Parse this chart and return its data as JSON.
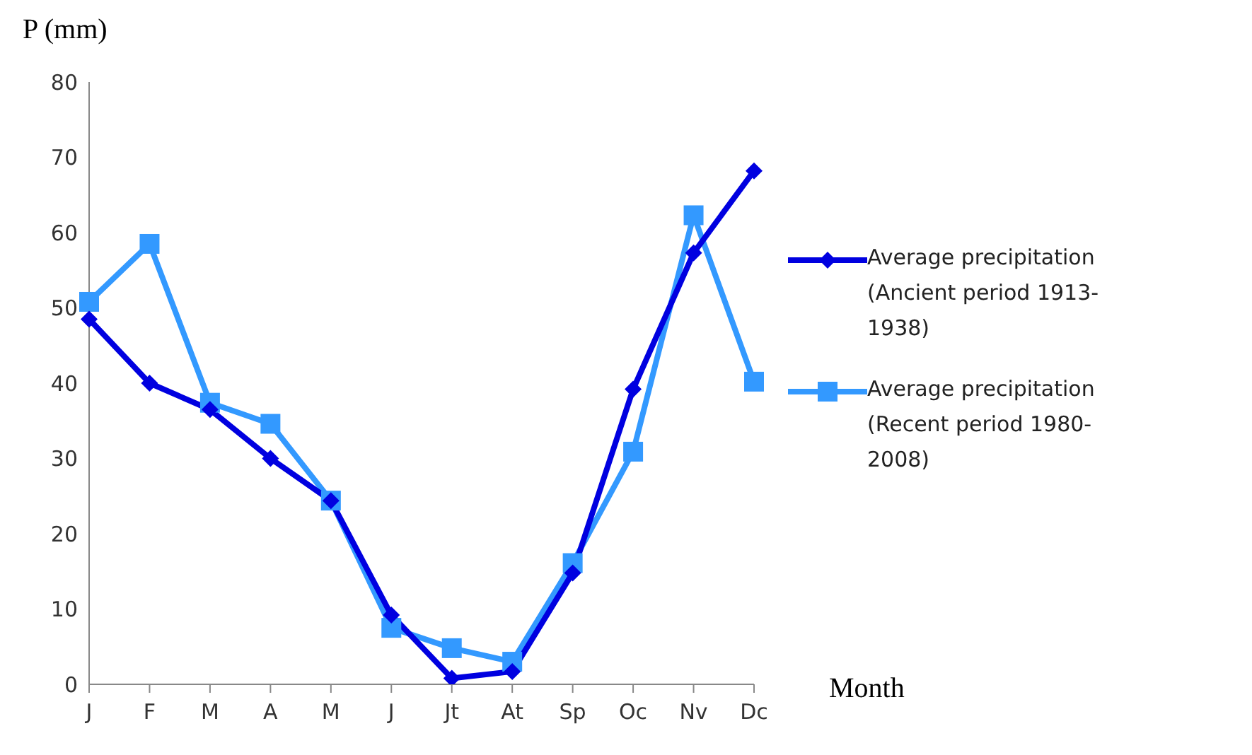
{
  "chart_data": {
    "type": "line",
    "xlabel": "Month",
    "ylabel": "P (mm)",
    "categories": [
      "J",
      "F",
      "M",
      "A",
      "M",
      "J",
      "Jt",
      "At",
      "Sp",
      "Oc",
      "Nv",
      "Dc"
    ],
    "series": [
      {
        "name": "Average precipitation (Ancient period 1913-1938)",
        "color": "#0000e0",
        "marker": "diamond",
        "values": [
          48.5,
          40,
          36.5,
          30,
          24.4,
          9.2,
          0.8,
          1.7,
          14.8,
          39.2,
          57.3,
          68.2
        ]
      },
      {
        "name": "Average precipitation (Recent period 1980-2008)",
        "color": "#3399ff",
        "marker": "square",
        "values": [
          50.8,
          58.5,
          37.4,
          34.6,
          24.4,
          7.5,
          4.8,
          3,
          16.1,
          30.9,
          62.3,
          40.2
        ]
      }
    ],
    "ylim": [
      0,
      80
    ],
    "yticks": [
      0,
      10,
      20,
      30,
      40,
      50,
      60,
      70,
      80
    ],
    "grid": false,
    "legend": "right"
  }
}
